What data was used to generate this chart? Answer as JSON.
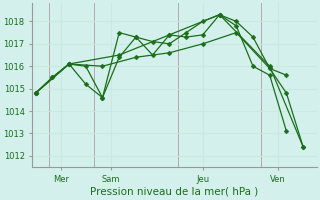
{
  "title": "Pression niveau de la mer( hPa )",
  "bg_color": "#d4f0ec",
  "grid_color": "#c8e8e0",
  "line_color": "#1a6e1a",
  "ylim": [
    1011.5,
    1018.8
  ],
  "yticks": [
    1012,
    1013,
    1014,
    1015,
    1016,
    1017,
    1018
  ],
  "xlim": [
    -0.2,
    16.8
  ],
  "xlabel_ticks": [
    1.5,
    4.5,
    10.0,
    14.5
  ],
  "xlabel_labels": [
    "Mer",
    "Sam",
    "Jeu",
    "Ven"
  ],
  "vlines_x": [
    0.8,
    3.5,
    8.5,
    13.5
  ],
  "series": [
    [
      [
        0,
        1014.8
      ],
      [
        1,
        1015.5
      ],
      [
        2,
        1016.1
      ],
      [
        3,
        1016.0
      ],
      [
        4,
        1014.6
      ],
      [
        5,
        1016.4
      ],
      [
        6,
        1017.3
      ],
      [
        7,
        1016.5
      ],
      [
        8,
        1017.4
      ],
      [
        9,
        1017.3
      ],
      [
        10,
        1017.4
      ],
      [
        11,
        1018.3
      ],
      [
        12,
        1018.0
      ],
      [
        13,
        1017.3
      ],
      [
        14,
        1015.9
      ],
      [
        15,
        1014.8
      ],
      [
        16,
        1012.4
      ]
    ],
    [
      [
        0,
        1014.8
      ],
      [
        1,
        1015.5
      ],
      [
        2,
        1016.1
      ],
      [
        3,
        1015.2
      ],
      [
        4,
        1014.6
      ],
      [
        5,
        1017.5
      ],
      [
        6,
        1017.3
      ],
      [
        7,
        1017.1
      ],
      [
        8,
        1017.0
      ],
      [
        9,
        1017.5
      ],
      [
        10,
        1018.0
      ],
      [
        11,
        1018.3
      ],
      [
        12,
        1017.8
      ],
      [
        13,
        1016.0
      ],
      [
        14,
        1015.6
      ],
      [
        15,
        1013.1
      ]
    ],
    [
      [
        0,
        1014.8
      ],
      [
        2,
        1016.1
      ],
      [
        4,
        1016.0
      ],
      [
        6,
        1016.4
      ],
      [
        8,
        1016.6
      ],
      [
        10,
        1017.0
      ],
      [
        12,
        1017.5
      ],
      [
        14,
        1015.9
      ],
      [
        15,
        1015.6
      ]
    ],
    [
      [
        0,
        1014.8
      ],
      [
        2,
        1016.1
      ],
      [
        5,
        1016.5
      ],
      [
        8,
        1017.4
      ],
      [
        11,
        1018.3
      ],
      [
        14,
        1016.0
      ],
      [
        16,
        1012.4
      ]
    ]
  ],
  "tick_fontsize": 6.0,
  "xlabel_fontsize": 7.5,
  "marker_size": 2.5
}
